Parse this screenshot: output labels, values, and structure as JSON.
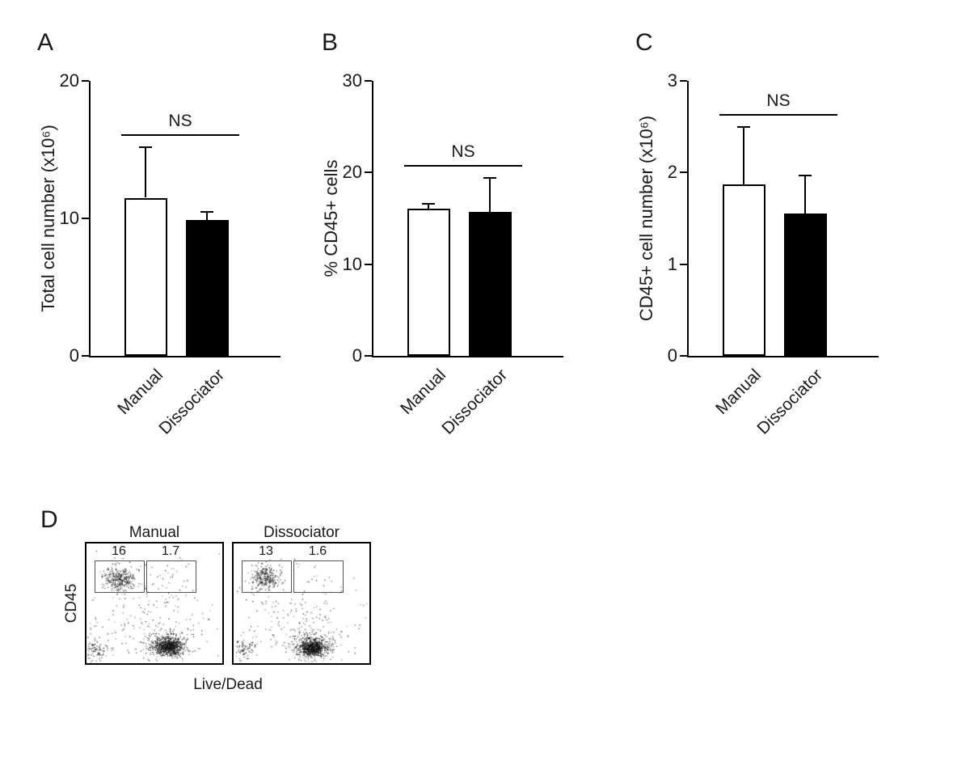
{
  "colors": {
    "axis": "#000000",
    "bar_fill_manual": "#ffffff",
    "bar_fill_dissociator": "#000000"
  },
  "chart_data": [
    {
      "id": "A",
      "type": "bar",
      "panel_label": "A",
      "ylabel": "Total cell number (x10⁶)",
      "xlabel": "",
      "categories": [
        "Manual",
        "Dissociator"
      ],
      "values": [
        11.5,
        9.9
      ],
      "errors_up": [
        3.7,
        0.6
      ],
      "ylim": [
        0,
        20
      ],
      "yticks": [
        0,
        10,
        20
      ],
      "bar_colors": [
        "#ffffff",
        "#000000"
      ],
      "significance": "NS",
      "grid": false
    },
    {
      "id": "B",
      "type": "bar",
      "panel_label": "B",
      "ylabel": "% CD45+ cells",
      "xlabel": "",
      "categories": [
        "Manual",
        "Dissociator"
      ],
      "values": [
        16.1,
        15.7
      ],
      "errors_up": [
        0.5,
        3.7
      ],
      "ylim": [
        0,
        30
      ],
      "yticks": [
        0,
        10,
        20,
        30
      ],
      "bar_colors": [
        "#ffffff",
        "#000000"
      ],
      "significance": "NS",
      "grid": false
    },
    {
      "id": "C",
      "type": "bar",
      "panel_label": "C",
      "ylabel": "CD45+ cell number (x10⁶)",
      "xlabel": "",
      "categories": [
        "Manual",
        "Dissociator"
      ],
      "values": [
        1.87,
        1.55
      ],
      "errors_up": [
        0.63,
        0.42
      ],
      "ylim": [
        0,
        3
      ],
      "yticks": [
        0,
        1,
        2,
        3
      ],
      "bar_colors": [
        "#ffffff",
        "#000000"
      ],
      "significance": "NS",
      "grid": false
    },
    {
      "id": "D",
      "type": "scatter",
      "panel_label": "D",
      "xlabel": "Live/Dead",
      "ylabel": "CD45",
      "plots": [
        {
          "title": "Manual",
          "gates": [
            {
              "label": "16"
            },
            {
              "label": "1.7"
            }
          ],
          "clusters": [
            {
              "cx": 0.24,
              "cy": 0.29,
              "sx": 0.055,
              "sy": 0.05,
              "n": 330
            },
            {
              "cx": 0.6,
              "cy": 0.86,
              "sx": 0.05,
              "sy": 0.035,
              "n": 700
            },
            {
              "cx": 0.6,
              "cy": 0.84,
              "sx": 0.1,
              "sy": 0.07,
              "n": 250
            },
            {
              "cx": 0.07,
              "cy": 0.88,
              "sx": 0.045,
              "sy": 0.04,
              "n": 100
            },
            {
              "cx": 0.45,
              "cy": 0.62,
              "sx": 0.28,
              "sy": 0.22,
              "n": 220
            },
            {
              "cx": 0.63,
              "cy": 0.3,
              "sx": 0.1,
              "sy": 0.08,
              "n": 16
            }
          ]
        },
        {
          "title": "Dissociator",
          "gates": [
            {
              "label": "13"
            },
            {
              "label": "1.6"
            }
          ],
          "clusters": [
            {
              "cx": 0.23,
              "cy": 0.28,
              "sx": 0.05,
              "sy": 0.05,
              "n": 300
            },
            {
              "cx": 0.58,
              "cy": 0.87,
              "sx": 0.05,
              "sy": 0.035,
              "n": 720
            },
            {
              "cx": 0.58,
              "cy": 0.84,
              "sx": 0.1,
              "sy": 0.07,
              "n": 240
            },
            {
              "cx": 0.07,
              "cy": 0.88,
              "sx": 0.045,
              "sy": 0.04,
              "n": 90
            },
            {
              "cx": 0.45,
              "cy": 0.63,
              "sx": 0.28,
              "sy": 0.22,
              "n": 210
            },
            {
              "cx": 0.62,
              "cy": 0.3,
              "sx": 0.1,
              "sy": 0.08,
              "n": 14
            }
          ]
        }
      ]
    }
  ]
}
